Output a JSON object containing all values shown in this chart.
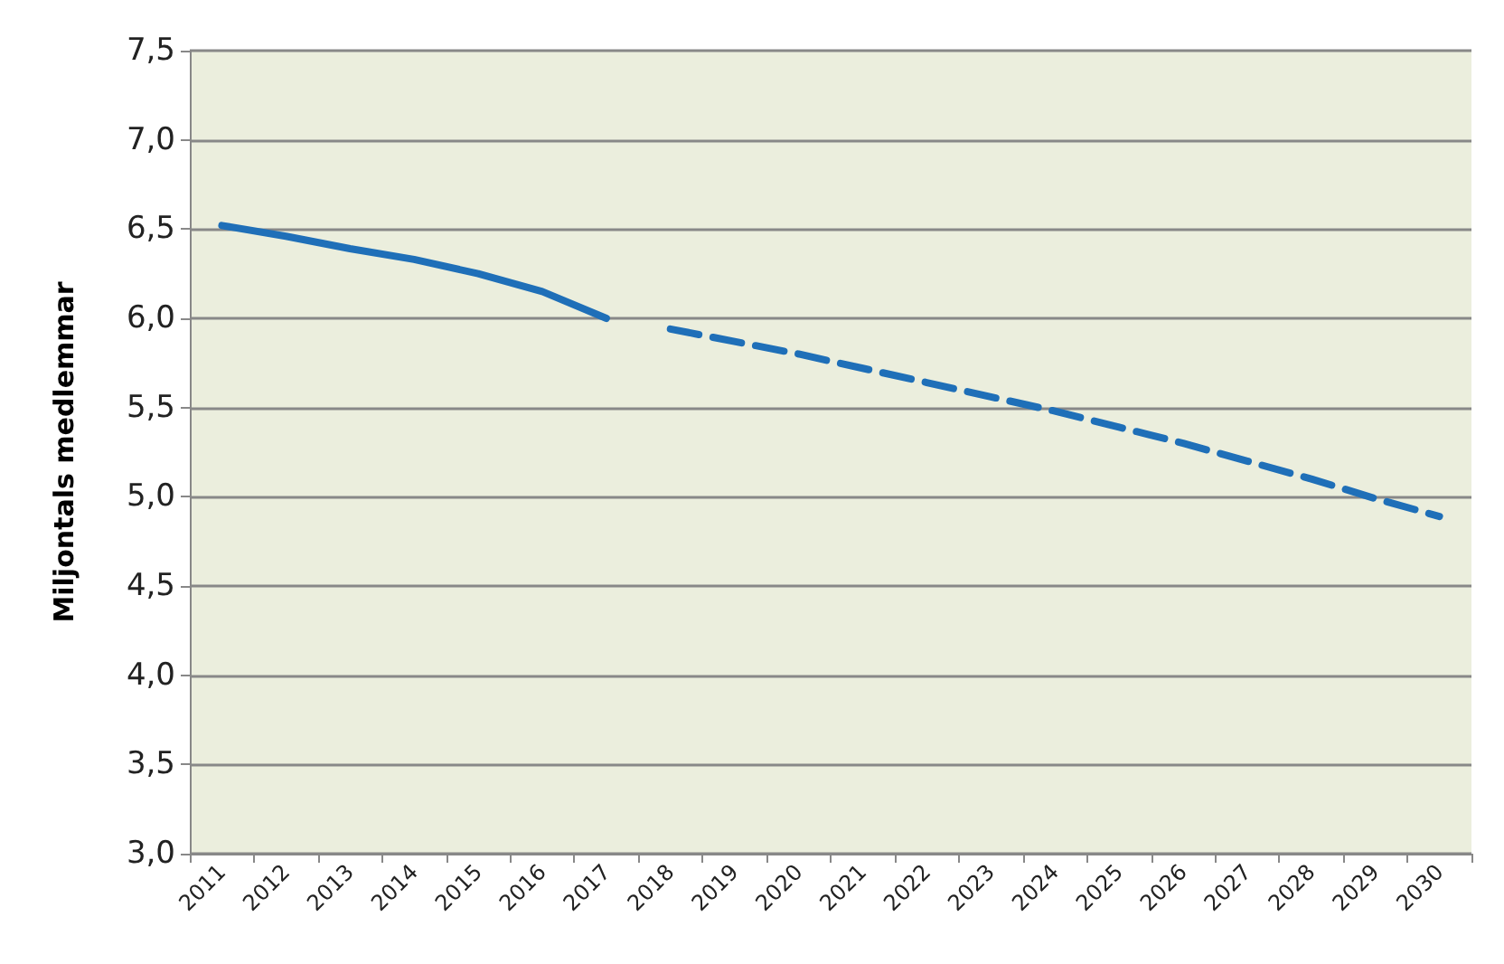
{
  "chart_data": {
    "type": "line",
    "ylabel": "Miljontals medlemmar",
    "categories": [
      "2011",
      "2012",
      "2013",
      "2014",
      "2015",
      "2016",
      "2017",
      "2018",
      "2019",
      "2020",
      "2021",
      "2022",
      "2023",
      "2024",
      "2025",
      "2026",
      "2027",
      "2028",
      "2029",
      "2030"
    ],
    "series": [
      {
        "color": "#1f6fb8",
        "line_style": "solid",
        "values": [
          6.52,
          6.46,
          6.39,
          6.33,
          6.25,
          6.15,
          6.0,
          null,
          null,
          null,
          null,
          null,
          null,
          null,
          null,
          null,
          null,
          null,
          null,
          null
        ]
      },
      {
        "color": "#1f6fb8",
        "line_style": "dashed",
        "values": [
          null,
          null,
          null,
          null,
          null,
          null,
          null,
          5.94,
          5.87,
          5.8,
          5.72,
          5.64,
          5.56,
          5.48,
          5.39,
          5.3,
          5.2,
          5.1,
          4.99,
          4.89
        ]
      }
    ],
    "ylim": [
      3,
      7.5
    ],
    "yticks": [
      {
        "value": 3,
        "label": "3,0"
      },
      {
        "value": 3.5,
        "label": "3,5"
      },
      {
        "value": 4,
        "label": "4,0"
      },
      {
        "value": 4.5,
        "label": "4,5"
      },
      {
        "value": 5,
        "label": "5,0"
      },
      {
        "value": 5.5,
        "label": "5,5"
      },
      {
        "value": 6,
        "label": "6,0"
      },
      {
        "value": 6.5,
        "label": "6,5"
      },
      {
        "value": 7,
        "label": "7,0"
      },
      {
        "value": 7.5,
        "label": "7,5"
      }
    ],
    "grid": "y",
    "marker": "none"
  }
}
